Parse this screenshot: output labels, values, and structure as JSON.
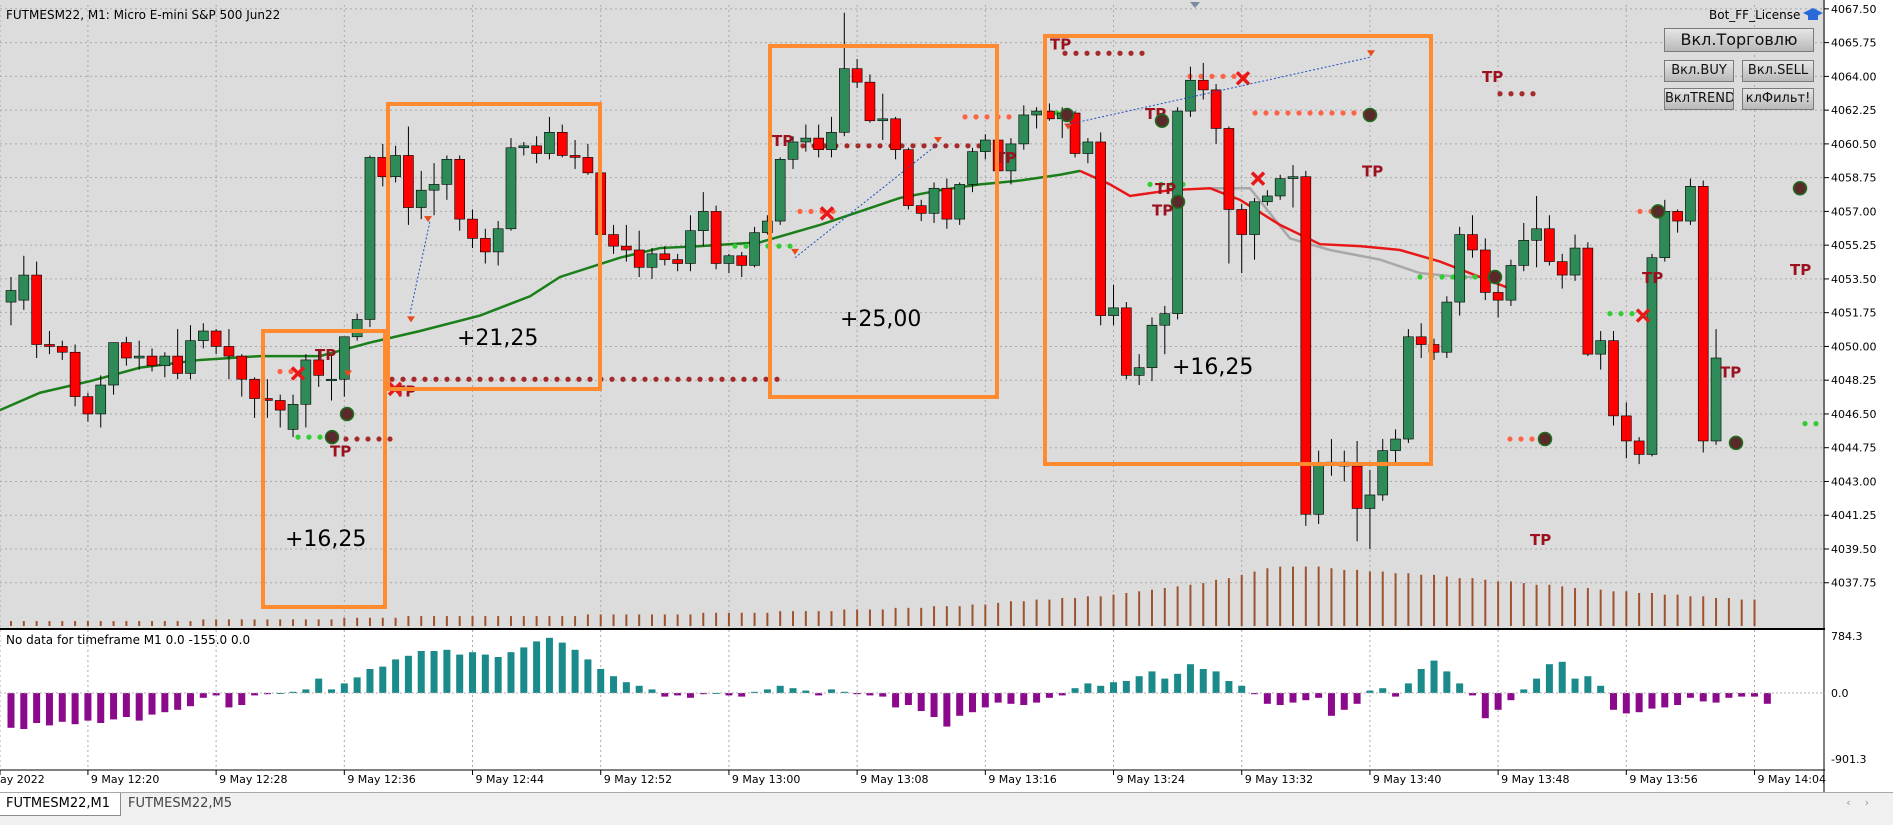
{
  "header": {
    "symbol_info": "FUTMESM22, M1:  Micro E-mini S&P 500 Jun22",
    "license": "Bot_FF_License"
  },
  "buttons": {
    "trade": "Вкл.Торговлю",
    "buy": "Вкл.BUY",
    "sell": "Вкл.SELL",
    "trend": "ВклTREND",
    "filter": "клФильт!"
  },
  "subwindow": {
    "info": "No data for timeframe M1 0.0 -155.0 0.0",
    "scale": [
      "784.3",
      "0.0",
      "-901.3"
    ]
  },
  "price_scale": [
    "4067.50",
    "4065.75",
    "4064.00",
    "4062.25",
    "4060.50",
    "4058.75",
    "4057.00",
    "4055.25",
    "4053.50",
    "4051.75",
    "4050.00",
    "4048.25",
    "4046.50",
    "4044.75",
    "4043.00",
    "4041.25",
    "4039.50",
    "4037.75"
  ],
  "time_scale": [
    "ay 2022",
    "9 May 12:20",
    "9 May 12:28",
    "9 May 12:36",
    "9 May 12:44",
    "9 May 12:52",
    "9 May 13:00",
    "9 May 13:08",
    "9 May 13:16",
    "9 May 13:24",
    "9 May 13:32",
    "9 May 13:40",
    "9 May 13:48",
    "9 May 13:56",
    "9 May 14:04"
  ],
  "annotations": [
    "+16,25",
    "+21,25",
    "+25,00",
    "+16,25"
  ],
  "tp_label": "TP",
  "tabs": [
    "FUTMESM22,M1",
    "FUTMESM22,M5"
  ],
  "colors": {
    "bull": "#2e8b57",
    "bear": "#ff0000",
    "ma": "#1a7f1a",
    "signal_line": "#e81818",
    "box": "#ff8a30",
    "hist_pos": "#1a8a8a",
    "hist_neg": "#8b0a8b",
    "chart_bg": "#dcdcdc"
  },
  "chart_data": {
    "type": "candlestick",
    "y_range": [
      4036.7,
      4067.7
    ],
    "candles": [
      [
        4052.3,
        4053.6,
        4051.1,
        4052.9
      ],
      [
        4052.4,
        4054.7,
        4051.9,
        4053.7
      ],
      [
        4053.7,
        4054.4,
        4049.4,
        4050.1
      ],
      [
        4050.1,
        4050.8,
        4049.6,
        4050.0
      ],
      [
        4050.0,
        4050.3,
        4049.3,
        4049.7
      ],
      [
        4049.7,
        4050.1,
        4046.9,
        4047.4
      ],
      [
        4047.4,
        4047.6,
        4046.1,
        4046.5
      ],
      [
        4046.5,
        4048.5,
        4045.8,
        4048.0
      ],
      [
        4048.0,
        4050.2,
        4047.5,
        4050.2
      ],
      [
        4050.2,
        4050.5,
        4049.0,
        4049.4
      ],
      [
        4049.4,
        4050.3,
        4048.8,
        4049.5
      ],
      [
        4049.5,
        4049.9,
        4048.7,
        4049.0
      ],
      [
        4049.0,
        4049.7,
        4048.4,
        4049.5
      ],
      [
        4049.5,
        4050.9,
        4048.3,
        4048.6
      ],
      [
        4048.6,
        4051.1,
        4048.3,
        4050.3
      ],
      [
        4050.3,
        4051.2,
        4049.9,
        4050.8
      ],
      [
        4050.8,
        4050.9,
        4049.6,
        4050.0
      ],
      [
        4050.0,
        4050.9,
        4048.3,
        4049.5
      ],
      [
        4049.5,
        4049.6,
        4047.4,
        4048.3
      ],
      [
        4048.3,
        4048.4,
        4046.3,
        4047.3
      ],
      [
        4047.3,
        4048.3,
        4046.3,
        4047.2
      ],
      [
        4047.2,
        4047.5,
        4045.8,
        4046.7
      ],
      [
        4045.7,
        4047.5,
        4045.3,
        4047.0
      ],
      [
        4047.0,
        4049.6,
        4045.8,
        4049.3
      ],
      [
        4049.3,
        4049.8,
        4047.9,
        4048.5
      ],
      [
        4048.3,
        4049.5,
        4047.2,
        4048.3
      ],
      [
        4048.3,
        4050.5,
        4047.4,
        4050.5
      ],
      [
        4050.5,
        4051.7,
        4050.3,
        4051.4
      ],
      [
        4051.4,
        4059.9,
        4051.0,
        4059.8
      ],
      [
        4059.8,
        4060.5,
        4058.3,
        4058.8
      ],
      [
        4058.8,
        4060.4,
        4058.5,
        4059.9
      ],
      [
        4059.9,
        4061.4,
        4056.3,
        4057.2
      ],
      [
        4057.2,
        4059.1,
        4056.6,
        4058.1
      ],
      [
        4058.1,
        4059.5,
        4056.8,
        4058.4
      ],
      [
        4058.4,
        4059.9,
        4057.6,
        4059.7
      ],
      [
        4059.7,
        4059.9,
        4056.0,
        4056.6
      ],
      [
        4056.6,
        4057.1,
        4055.1,
        4055.6
      ],
      [
        4055.6,
        4056.1,
        4054.3,
        4054.9
      ],
      [
        4054.9,
        4056.5,
        4054.2,
        4056.1
      ],
      [
        4056.1,
        4060.8,
        4056.0,
        4060.3
      ],
      [
        4060.3,
        4060.6,
        4059.9,
        4060.4
      ],
      [
        4060.4,
        4060.9,
        4059.5,
        4060.0
      ],
      [
        4060.0,
        4061.9,
        4059.7,
        4061.1
      ],
      [
        4061.1,
        4061.5,
        4059.8,
        4059.9
      ],
      [
        4059.9,
        4060.7,
        4059.2,
        4059.8
      ],
      [
        4059.8,
        4060.5,
        4058.9,
        4059.0
      ],
      [
        4059.0,
        4059.5,
        4055.8,
        4055.8
      ],
      [
        4055.8,
        4056.3,
        4054.8,
        4055.2
      ],
      [
        4055.2,
        4056.3,
        4054.4,
        4055.0
      ],
      [
        4055.0,
        4056.0,
        4053.6,
        4054.1
      ],
      [
        4054.1,
        4055.1,
        4053.5,
        4054.8
      ],
      [
        4054.8,
        4055.2,
        4054.2,
        4054.5
      ],
      [
        4054.5,
        4054.8,
        4053.9,
        4054.3
      ],
      [
        4054.3,
        4056.8,
        4053.9,
        4056.0
      ],
      [
        4056.0,
        4058.0,
        4055.2,
        4057.0
      ],
      [
        4057.0,
        4057.3,
        4054.0,
        4054.3
      ],
      [
        4054.3,
        4054.8,
        4053.8,
        4054.7
      ],
      [
        4054.7,
        4054.9,
        4053.6,
        4054.2
      ],
      [
        4054.2,
        4056.2,
        4054.1,
        4055.9
      ],
      [
        4055.9,
        4056.8,
        4055.8,
        4056.5
      ],
      [
        4056.5,
        4059.8,
        4056.3,
        4059.7
      ],
      [
        4059.7,
        4060.9,
        4059.2,
        4060.6
      ],
      [
        4060.6,
        4061.5,
        4060.1,
        4060.8
      ],
      [
        4060.8,
        4061.5,
        4059.8,
        4060.2
      ],
      [
        4060.2,
        4061.9,
        4059.8,
        4061.1
      ],
      [
        4061.1,
        4067.3,
        4060.9,
        4064.4
      ],
      [
        4064.4,
        4064.9,
        4063.4,
        4063.7
      ],
      [
        4063.7,
        4064.1,
        4061.6,
        4061.7
      ],
      [
        4061.7,
        4063.1,
        4060.7,
        4061.8
      ],
      [
        4061.8,
        4061.9,
        4059.7,
        4060.2
      ],
      [
        4060.2,
        4060.3,
        4057.1,
        4057.3
      ],
      [
        4057.3,
        4057.6,
        4056.5,
        4056.9
      ],
      [
        4056.9,
        4058.5,
        4056.4,
        4058.2
      ],
      [
        4058.2,
        4058.7,
        4056.1,
        4056.6
      ],
      [
        4056.6,
        4058.5,
        4056.3,
        4058.4
      ],
      [
        4058.4,
        4060.3,
        4058.0,
        4060.1
      ],
      [
        4060.1,
        4061.0,
        4059.7,
        4060.7
      ],
      [
        4060.7,
        4061.4,
        4058.9,
        4059.1
      ],
      [
        4059.1,
        4060.8,
        4058.4,
        4060.5
      ],
      [
        4060.5,
        4062.5,
        4060.2,
        4062.0
      ],
      [
        4062.0,
        4062.4,
        4061.3,
        4062.2
      ],
      [
        4062.2,
        4062.6,
        4061.7,
        4061.8
      ],
      [
        4061.8,
        4062.4,
        4060.8,
        4062.1
      ],
      [
        4062.1,
        4062.2,
        4059.8,
        4060.0
      ],
      [
        4060.0,
        4060.8,
        4059.5,
        4060.6
      ],
      [
        4060.6,
        4061.1,
        4051.1,
        4051.6
      ],
      [
        4051.6,
        4053.2,
        4051.1,
        4052.0
      ],
      [
        4052.0,
        4052.3,
        4048.3,
        4048.5
      ],
      [
        4048.5,
        4049.6,
        4048.0,
        4048.9
      ],
      [
        4048.9,
        4051.5,
        4048.2,
        4051.1
      ],
      [
        4051.1,
        4052.1,
        4049.6,
        4051.7
      ],
      [
        4051.7,
        4062.4,
        4051.4,
        4062.2
      ],
      [
        4062.2,
        4064.5,
        4061.9,
        4063.8
      ],
      [
        4063.8,
        4064.7,
        4062.8,
        4063.3
      ],
      [
        4063.3,
        4063.6,
        4060.5,
        4061.3
      ],
      [
        4061.3,
        4061.4,
        4054.3,
        4057.1
      ],
      [
        4057.1,
        4057.4,
        4053.8,
        4055.8
      ],
      [
        4055.8,
        4057.7,
        4054.5,
        4057.5
      ],
      [
        4057.5,
        4058.1,
        4057.3,
        4057.8
      ],
      [
        4057.8,
        4058.9,
        4057.6,
        4058.7
      ],
      [
        4058.7,
        4059.4,
        4057.2,
        4058.8
      ],
      [
        4058.8,
        4059.1,
        4040.7,
        4041.3
      ],
      [
        4041.3,
        4044.6,
        4040.8,
        4043.9
      ],
      [
        4043.9,
        4045.2,
        4043.3,
        4044.0
      ],
      [
        4044.0,
        4044.6,
        4043.0,
        4043.8
      ],
      [
        4043.8,
        4045.1,
        4039.9,
        4041.6
      ],
      [
        4041.6,
        4043.6,
        4039.5,
        4042.3
      ],
      [
        4042.3,
        4045.2,
        4042.0,
        4044.6
      ],
      [
        4044.6,
        4045.7,
        4043.8,
        4045.2
      ],
      [
        4045.2,
        4050.9,
        4045.0,
        4050.5
      ],
      [
        4050.5,
        4051.2,
        4049.4,
        4050.1
      ],
      [
        4050.1,
        4050.4,
        4049.3,
        4049.7
      ],
      [
        4049.7,
        4052.6,
        4049.4,
        4052.3
      ],
      [
        4052.3,
        4056.2,
        4051.6,
        4055.8
      ],
      [
        4055.8,
        4056.8,
        4054.6,
        4055.0
      ],
      [
        4055.0,
        4055.6,
        4052.4,
        4052.8
      ],
      [
        4052.8,
        4053.3,
        4051.5,
        4052.4
      ],
      [
        4052.4,
        4054.5,
        4052.1,
        4054.2
      ],
      [
        4054.2,
        4056.4,
        4053.9,
        4055.5
      ],
      [
        4055.5,
        4057.8,
        4054.1,
        4056.1
      ],
      [
        4056.1,
        4056.8,
        4054.2,
        4054.4
      ],
      [
        4054.4,
        4054.8,
        4053.0,
        4053.7
      ],
      [
        4053.7,
        4055.8,
        4053.4,
        4055.1
      ],
      [
        4055.1,
        4055.4,
        4049.5,
        4049.6
      ],
      [
        4049.6,
        4050.8,
        4048.8,
        4050.3
      ],
      [
        4050.3,
        4050.8,
        4045.9,
        4046.4
      ],
      [
        4046.4,
        4047.1,
        4044.2,
        4045.1
      ],
      [
        4045.1,
        4045.3,
        4043.9,
        4044.4
      ],
      [
        4044.4,
        4054.8,
        4044.3,
        4054.6
      ],
      [
        4054.6,
        4057.6,
        4054.4,
        4057.0
      ],
      [
        4057.0,
        4057.1,
        4055.9,
        4056.5
      ],
      [
        4056.5,
        4058.7,
        4056.3,
        4058.3
      ],
      [
        4058.3,
        4058.6,
        4044.5,
        4045.1
      ],
      [
        4045.1,
        4050.9,
        4044.9,
        4049.4
      ]
    ],
    "volume": [
      3,
      3,
      3,
      3,
      3,
      3,
      3,
      3,
      3,
      3,
      3,
      3,
      3,
      3,
      3,
      4,
      4,
      4,
      4,
      4,
      4,
      4,
      4,
      4,
      4,
      4,
      5,
      5,
      5,
      5,
      5,
      6,
      6,
      6,
      6,
      6,
      6,
      6,
      6,
      6,
      6,
      6,
      6,
      6,
      6,
      7,
      7,
      7,
      7,
      7,
      7,
      7,
      7,
      7,
      8,
      8,
      8,
      8,
      8,
      8,
      9,
      9,
      9,
      9,
      9,
      10,
      10,
      10,
      10,
      11,
      11,
      11,
      12,
      12,
      12,
      13,
      13,
      14,
      15,
      15,
      16,
      16,
      17,
      17,
      18,
      18,
      19,
      20,
      21,
      22,
      23,
      24,
      25,
      26,
      28,
      29,
      31,
      33,
      35,
      36,
      36,
      36,
      36,
      35,
      34,
      34,
      33,
      33,
      32,
      32,
      31,
      31,
      30,
      29,
      29,
      28,
      27,
      27,
      26,
      25,
      25,
      24,
      23,
      23,
      22,
      21,
      21,
      20,
      20,
      19,
      19,
      18,
      18,
      17,
      17,
      16,
      16
    ],
    "histogram": [
      -290,
      -300,
      -250,
      -270,
      -240,
      -260,
      -230,
      -250,
      -220,
      -200,
      -230,
      -180,
      -160,
      -140,
      -110,
      -40,
      -20,
      -120,
      -100,
      -20,
      -10,
      0,
      10,
      30,
      120,
      30,
      80,
      130,
      200,
      220,
      280,
      310,
      350,
      350,
      360,
      320,
      340,
      320,
      300,
      340,
      380,
      430,
      460,
      420,
      360,
      280,
      200,
      140,
      90,
      60,
      30,
      -30,
      -20,
      -40,
      -10,
      0,
      -20,
      -30,
      10,
      30,
      60,
      40,
      20,
      -20,
      30,
      10,
      -10,
      -20,
      -30,
      -120,
      -100,
      -150,
      -200,
      -280,
      -190,
      -160,
      -120,
      -80,
      -90,
      -100,
      -80,
      -40,
      -20,
      40,
      80,
      60,
      90,
      100,
      140,
      180,
      120,
      160,
      240,
      200,
      180,
      100,
      60,
      -10,
      -90,
      -100,
      -80,
      -60,
      -40,
      -190,
      -140,
      -90,
      20,
      40,
      -30,
      80,
      200,
      270,
      180,
      80,
      -20,
      -210,
      -140,
      -60,
      30,
      120,
      240,
      260,
      120,
      140,
      60,
      -140,
      -170,
      -160,
      -130,
      -120,
      -100,
      -40,
      -70,
      -80,
      -40,
      -30,
      -30,
      -90
    ],
    "ma": [
      [
        0,
        4046.7
      ],
      [
        40,
        4047.6
      ],
      [
        90,
        4048.2
      ],
      [
        140,
        4048.9
      ],
      [
        200,
        4049.3
      ],
      [
        260,
        4049.5
      ],
      [
        320,
        4049.5
      ],
      [
        370,
        4050.2
      ],
      [
        420,
        4050.8
      ],
      [
        480,
        4051.6
      ],
      [
        530,
        4052.6
      ],
      [
        560,
        4053.6
      ],
      [
        620,
        4054.6
      ],
      [
        660,
        4055.1
      ],
      [
        700,
        4055.2
      ],
      [
        760,
        4055.4
      ],
      [
        820,
        4056.3
      ],
      [
        860,
        4057.0
      ],
      [
        900,
        4057.7
      ],
      [
        940,
        4058.1
      ],
      [
        980,
        4058.4
      ],
      [
        1020,
        4058.6
      ],
      [
        1060,
        4058.9
      ],
      [
        1080,
        4059.1
      ]
    ],
    "signal_line": [
      [
        1080,
        4059.1
      ],
      [
        1110,
        4058.4
      ],
      [
        1130,
        4057.8
      ],
      [
        1170,
        4058.1
      ],
      [
        1210,
        4058.2
      ],
      [
        1240,
        4057.6
      ],
      [
        1280,
        4056.3
      ],
      [
        1320,
        4055.3
      ],
      [
        1360,
        4055.2
      ],
      [
        1400,
        4055.0
      ],
      [
        1440,
        4054.4
      ],
      [
        1480,
        4053.6
      ],
      [
        1510,
        4053.0
      ]
    ],
    "signal_gray": [
      [
        1210,
        4058.2
      ],
      [
        1250,
        4058.2
      ],
      [
        1290,
        4055.6
      ],
      [
        1330,
        4055.0
      ],
      [
        1380,
        4054.5
      ],
      [
        1420,
        4053.8
      ],
      [
        1460,
        4053.6
      ],
      [
        1490,
        4053.6
      ]
    ]
  }
}
